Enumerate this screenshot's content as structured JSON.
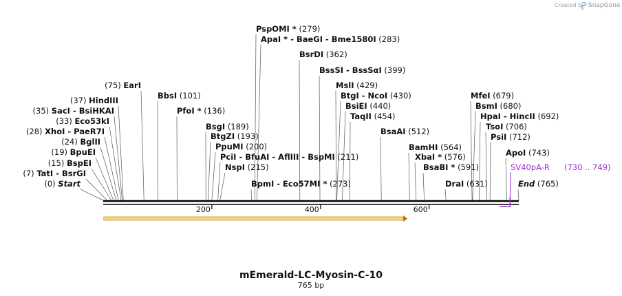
{
  "header": {
    "credit": "Created by",
    "brand": "SnapGene"
  },
  "map": {
    "name": "mEmerald-LC-Myosin-C-10",
    "length_label": "765 bp",
    "length_bp": 765
  },
  "ticks": [
    {
      "bp": 200,
      "label": "200"
    },
    {
      "bp": 400,
      "label": "400"
    },
    {
      "bp": 600,
      "label": "600"
    }
  ],
  "feature": {
    "name": "SV40pA-R",
    "range": "(730 .. 749)",
    "start": 730,
    "end": 749,
    "color": "#9b30d0"
  },
  "orf": {
    "start": 1,
    "end": 560,
    "color": "#f0b030"
  },
  "sites": [
    {
      "text": "(0)",
      "name": "Start",
      "pos": 0,
      "tail": "",
      "style": "italic"
    },
    {
      "text": "(7)",
      "name": "TatI",
      "pos": 7,
      "tail": " - BsrGI"
    },
    {
      "text": "(15)",
      "name": "BspEI",
      "pos": 15,
      "tail": ""
    },
    {
      "text": "(19)",
      "name": "BpuEI",
      "pos": 19,
      "tail": ""
    },
    {
      "text": "(24)",
      "name": "BglII",
      "pos": 24,
      "tail": ""
    },
    {
      "text": "(28)",
      "name": "XhoI",
      "pos": 28,
      "tail": " - PaeR7I"
    },
    {
      "text": "(33)",
      "name": "Eco53kI",
      "pos": 33,
      "tail": ""
    },
    {
      "text": "(35)",
      "name": "SacI",
      "pos": 35,
      "tail": " - BsiHKAI"
    },
    {
      "text": "(37)",
      "name": "HindIII",
      "pos": 37,
      "tail": ""
    },
    {
      "text": "(75)",
      "name": "EarI",
      "pos": 75,
      "tail": ""
    },
    {
      "text": "(101)",
      "name": "BbsI",
      "pos": 101,
      "tail": ""
    },
    {
      "text": "(136)",
      "name": "PfoI *",
      "pos": 136,
      "tail": ""
    },
    {
      "text": "(189)",
      "name": "BsgI",
      "pos": 189,
      "tail": ""
    },
    {
      "text": "(193)",
      "name": "BtgZI",
      "pos": 193,
      "tail": ""
    },
    {
      "text": "(200)",
      "name": "PpuMI",
      "pos": 200,
      "tail": ""
    },
    {
      "text": "(211)",
      "name": "PciI",
      "pos": 211,
      "tail": " - BfuAI - AflIII - BspMI"
    },
    {
      "text": "(215)",
      "name": "NspI",
      "pos": 215,
      "tail": ""
    },
    {
      "text": "(273)",
      "name": "BpmI",
      "pos": 273,
      "tail": " - Eco57MI *"
    },
    {
      "text": "(279)",
      "name": "PspOMI *",
      "pos": 279,
      "tail": ""
    },
    {
      "text": "(283)",
      "name": "ApaI *",
      "pos": 283,
      "tail": " - BaeGI - Bme1580I"
    },
    {
      "text": "(362)",
      "name": "BsrDI",
      "pos": 362,
      "tail": ""
    },
    {
      "text": "(399)",
      "name": "BssSI",
      "pos": 399,
      "tail": " - BssSαI"
    },
    {
      "text": "(429)",
      "name": "MslI",
      "pos": 429,
      "tail": ""
    },
    {
      "text": "(430)",
      "name": "BtgI",
      "pos": 430,
      "tail": " - NcoI"
    },
    {
      "text": "(440)",
      "name": "BsiEI",
      "pos": 440,
      "tail": ""
    },
    {
      "text": "(454)",
      "name": "TaqII",
      "pos": 454,
      "tail": ""
    },
    {
      "text": "(512)",
      "name": "BsaAI",
      "pos": 512,
      "tail": ""
    },
    {
      "text": "(564)",
      "name": "BamHI",
      "pos": 564,
      "tail": ""
    },
    {
      "text": "(576)",
      "name": "XbaI *",
      "pos": 576,
      "tail": ""
    },
    {
      "text": "(591)",
      "name": "BsaBI *",
      "pos": 591,
      "tail": ""
    },
    {
      "text": "(631)",
      "name": "DraI",
      "pos": 631,
      "tail": ""
    },
    {
      "text": "(679)",
      "name": "MfeI",
      "pos": 679,
      "tail": ""
    },
    {
      "text": "(680)",
      "name": "BsmI",
      "pos": 680,
      "tail": ""
    },
    {
      "text": "(692)",
      "name": "HpaI",
      "pos": 692,
      "tail": " - HincII"
    },
    {
      "text": "(706)",
      "name": "TsoI",
      "pos": 706,
      "tail": ""
    },
    {
      "text": "(712)",
      "name": "PsiI",
      "pos": 712,
      "tail": ""
    },
    {
      "text": "(743)",
      "name": "ApoI",
      "pos": 743,
      "tail": ""
    },
    {
      "text": "(765)",
      "name": "End",
      "pos": 765,
      "tail": "",
      "style": "italic"
    }
  ]
}
